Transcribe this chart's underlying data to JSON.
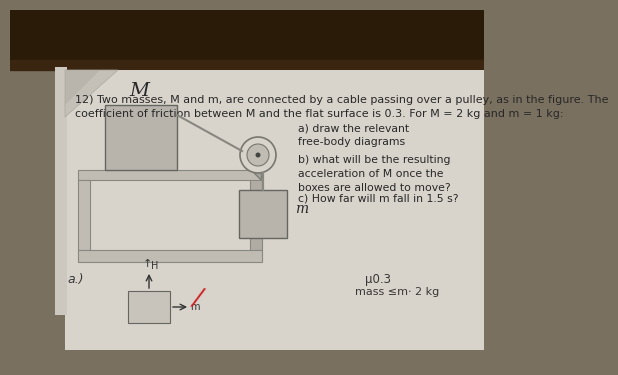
{
  "bg_color": "#7a7060",
  "paper_color": "#d8d4cc",
  "paper_shadow": "#c0bcb4",
  "fold_color": "#c4c0b8",
  "wood_color": "#2a1a08",
  "wood_color2": "#3a2510",
  "title_line1": "12) Two masses, M and m, are connected by a cable passing over a pulley, as in the figure. The",
  "title_line2": "coefficient of friction between M and the flat surface is 0.3. For M = 2 kg and m = 1 kg:",
  "question_a": "a) draw the relevant\nfree-body diagrams",
  "question_b": "b) what will be the resulting\nacceleration of M once the\nboxes are allowed to move?",
  "question_c": "c) How far will m fall in 1.5 s?",
  "label_M": "M",
  "label_m": "m",
  "bottom_label_a": "a.)",
  "bottom_text1": "μ0.3",
  "bottom_text2": "mass ≤m⋅ 2 kg",
  "title_fontsize": 8.0,
  "question_fontsize": 7.8,
  "box_color": "#b8b4ac",
  "box_edge": "#666660",
  "table_color": "#c0bcb4",
  "table_edge": "#888880",
  "pulley_color": "#c8c4bc",
  "pulley_edge": "#777770",
  "bracket_color": "#a0a098",
  "text_color": "#282828",
  "cable_color": "#888880",
  "red_color": "#cc2222"
}
